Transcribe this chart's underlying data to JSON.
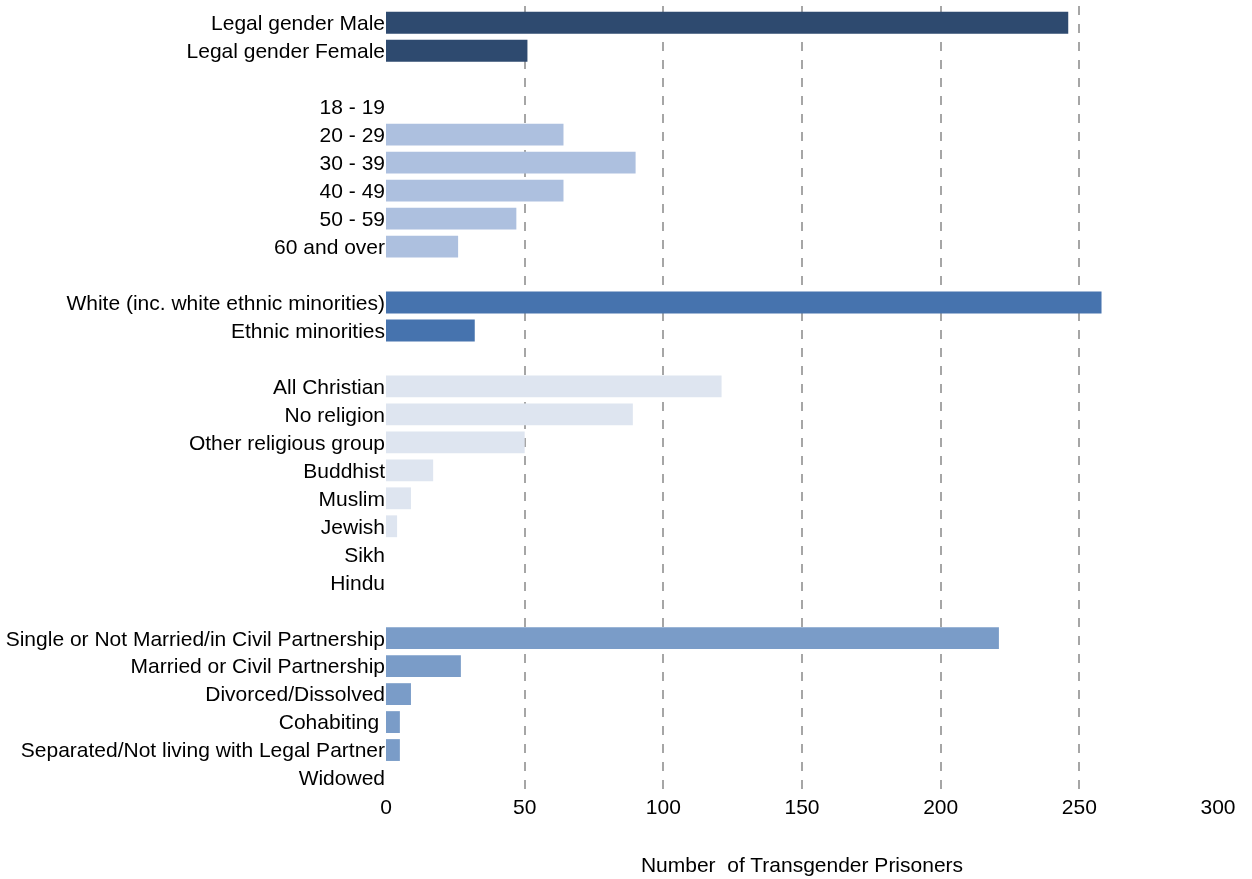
{
  "chart_data": {
    "type": "bar",
    "orientation": "horizontal",
    "xlabel": "Number  of Transgender Prisoners",
    "categories": [
      "Legal gender Male",
      "Legal gender Female",
      null,
      "18 - 19",
      "20 - 29",
      "30 - 39",
      "40 - 49",
      "50 - 59",
      "60 and over",
      null,
      "White (inc. white ethnic minorities)",
      "Ethnic minorities",
      null,
      "All Christian",
      "No religion",
      "Other religious group",
      "Buddhist",
      "Muslim",
      "Jewish",
      "Sikh",
      "Hindu",
      null,
      "Single or Not Married/in Civil Partnership",
      "Married or Civil Partnership",
      "Divorced/Dissolved",
      "Cohabiting ",
      "Separated/Not living with Legal Partner",
      "Widowed"
    ],
    "values": [
      246,
      51,
      null,
      0,
      64,
      90,
      64,
      47,
      26,
      null,
      258,
      32,
      null,
      121,
      89,
      50,
      17,
      9,
      4,
      0,
      0,
      null,
      221,
      27,
      9,
      5,
      5,
      0
    ],
    "colors": [
      "#2e4a6f",
      "#2e4a6f",
      "#ffffff",
      "#adc0df",
      "#adc0df",
      "#adc0df",
      "#adc0df",
      "#adc0df",
      "#adc0df",
      "#ffffff",
      "#4673ae",
      "#4673ae",
      "#ffffff",
      "#dee5f0",
      "#dee5f0",
      "#dee5f0",
      "#dee5f0",
      "#dee5f0",
      "#dee5f0",
      "#dee5f0",
      "#dee5f0",
      "#ffffff",
      "#7a9cc8",
      "#7a9cc8",
      "#7a9cc8",
      "#7a9cc8",
      "#7a9cc8",
      "#7a9cc8"
    ],
    "xlim": [
      0,
      300
    ],
    "xticks": [
      0,
      50,
      100,
      150,
      200,
      250,
      300
    ],
    "grid": "x",
    "legend": false
  }
}
